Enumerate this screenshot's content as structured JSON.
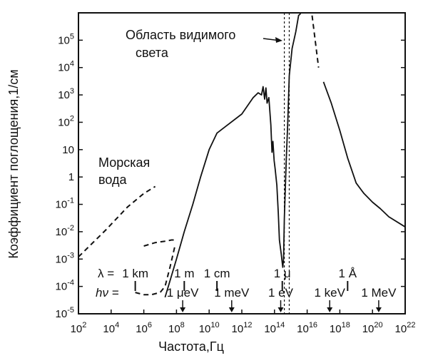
{
  "chart_data": {
    "type": "line",
    "title": "",
    "xlabel": "Частота,Гц",
    "ylabel": "Коэффициент поглощения,1/см",
    "x_scale": "log",
    "y_scale": "log",
    "xlim": [
      100,
      1e+22
    ],
    "ylim": [
      1e-05,
      1000000.0
    ],
    "x_ticks": [
      {
        "value": 100.0,
        "base": "10",
        "exp": "2"
      },
      {
        "value": 10000.0,
        "base": "10",
        "exp": "4"
      },
      {
        "value": 1000000.0,
        "base": "10",
        "exp": "6"
      },
      {
        "value": 100000000.0,
        "base": "10",
        "exp": "8"
      },
      {
        "value": 10000000000.0,
        "base": "10",
        "exp": "10"
      },
      {
        "value": 1000000000000.0,
        "base": "10",
        "exp": "12"
      },
      {
        "value": 100000000000000.0,
        "base": "10",
        "exp": "14"
      },
      {
        "value": 1e+16,
        "base": "10",
        "exp": "16"
      },
      {
        "value": 1e+18,
        "base": "10",
        "exp": "18"
      },
      {
        "value": 1e+20,
        "base": "10",
        "exp": "20"
      },
      {
        "value": 1e+22,
        "base": "10",
        "exp": "22"
      }
    ],
    "y_ticks": [
      {
        "value": 1e-05,
        "base": "10",
        "exp": "-5"
      },
      {
        "value": 0.0001,
        "base": "10",
        "exp": "-4"
      },
      {
        "value": 0.001,
        "base": "10",
        "exp": "-3"
      },
      {
        "value": 0.01,
        "base": "10",
        "exp": "-2"
      },
      {
        "value": 0.1,
        "base": "10",
        "exp": "-1"
      },
      {
        "value": 1,
        "base": "1",
        "exp": ""
      },
      {
        "value": 10,
        "base": "10",
        "exp": ""
      },
      {
        "value": 100.0,
        "base": "10",
        "exp": "2"
      },
      {
        "value": 1000.0,
        "base": "10",
        "exp": "3"
      },
      {
        "value": 10000.0,
        "base": "10",
        "exp": "4"
      },
      {
        "value": 100000.0,
        "base": "10",
        "exp": "5"
      }
    ],
    "series": [
      {
        "style": "solid",
        "points": [
          [
            20000000.0,
            4e-05
          ],
          [
            100000000.0,
            0.001
          ],
          [
            300000000.0,
            0.01
          ],
          [
            1000000000.0,
            0.1
          ],
          [
            3000000000.0,
            1
          ],
          [
            10000000000.0,
            10
          ],
          [
            30000000000.0,
            40
          ],
          [
            100000000000.0,
            70
          ],
          [
            1000000000000.0,
            200
          ],
          [
            5000000000000.0,
            800
          ],
          [
            10000000000000.0,
            1200
          ],
          [
            16000000000000.0,
            1000
          ],
          [
            20000000000000.0,
            2000
          ],
          [
            25000000000000.0,
            700
          ],
          [
            30000000000000.0,
            1800
          ],
          [
            35000000000000.0,
            500
          ],
          [
            45000000000000.0,
            800
          ],
          [
            60000000000000.0,
            80
          ],
          [
            70000000000000.0,
            8
          ],
          [
            80000000000000.0,
            20
          ],
          [
            95000000000000.0,
            4
          ],
          [
            110000000000000.0,
            2
          ],
          [
            140000000000000.0,
            0.5
          ],
          [
            170000000000000.0,
            0.05
          ],
          [
            200000000000000.0,
            0.005
          ],
          [
            260000000000000.0,
            0.0015
          ],
          [
            320000000000000.0,
            0.0005
          ],
          [
            360000000000000.0,
            0.001
          ],
          [
            400000000000000.0,
            0.03
          ],
          [
            460000000000000.0,
            0.4
          ],
          [
            530000000000000.0,
            5
          ],
          [
            650000000000000.0,
            100
          ],
          [
            800000000000000.0,
            5000
          ],
          [
            1200000000000000.0,
            50000
          ],
          [
            2000000000000000.0,
            200000
          ],
          [
            3000000000000000.0,
            800000
          ],
          [
            4000000000000000.0,
            1000000
          ]
        ]
      },
      {
        "style": "solid",
        "points": [
          [
            1e+17,
            3000
          ],
          [
            3e+17,
            500
          ],
          [
            1e+18,
            50
          ],
          [
            3e+18,
            5
          ],
          [
            1e+19,
            0.6
          ],
          [
            3e+19,
            0.25
          ],
          [
            1e+20,
            0.12
          ],
          [
            3e+20,
            0.07
          ],
          [
            1e+21,
            0.035
          ],
          [
            1e+22,
            0.015
          ]
        ]
      },
      {
        "style": "dashed",
        "points": [
          [
            100.0,
            0.0012
          ],
          [
            5000.0,
            0.012
          ],
          [
            100000.0,
            0.08
          ],
          [
            1000000.0,
            0.25
          ],
          [
            5000000.0,
            0.45
          ]
        ]
      },
      {
        "style": "dashed",
        "points": [
          [
            1000000.0,
            0.003
          ],
          [
            5000000.0,
            0.004
          ],
          [
            20000000.0,
            0.0045
          ],
          [
            50000000.0,
            0.005
          ],
          [
            80000000.0,
            0.005
          ]
        ]
      },
      {
        "style": "dashed",
        "points": [
          [
            300000.0,
            6e-05
          ],
          [
            1000000.0,
            5e-05
          ],
          [
            3000000.0,
            5e-05
          ],
          [
            10000000.0,
            6e-05
          ],
          [
            20000000.0,
            0.0001
          ],
          [
            40000000.0,
            0.0005
          ],
          [
            80000000.0,
            0.003
          ]
        ]
      },
      {
        "style": "dashed",
        "points": [
          [
            2e+16,
            800000
          ],
          [
            5e+16,
            10000
          ]
        ]
      }
    ],
    "visible_band": {
      "x_range": [
        400000000000000.0,
        800000000000000.0
      ]
    },
    "annotations": {
      "visible_light": [
        "Область видимого",
        "света"
      ],
      "sea_water": [
        "Морская",
        "вода"
      ],
      "lambda_row": {
        "prefix": "λ = ",
        "items": [
          {
            "x": 300000.0,
            "label": "1 km"
          },
          {
            "x": 300000000.0,
            "label": "1 m"
          },
          {
            "x": 30000000000.0,
            "label": "1 cm"
          },
          {
            "x": 300000000000000.0,
            "label": "1 μ"
          },
          {
            "x": 3e+18,
            "label": "1 Å"
          }
        ]
      },
      "energy_row": {
        "prefix": "hν =",
        "items": [
          {
            "x": 240000000.0,
            "label": "1 μeV"
          },
          {
            "x": 240000000000.0,
            "label": "1 meV"
          },
          {
            "x": 240000000000000.0,
            "label": "1 eV"
          },
          {
            "x": 2.4e+17,
            "label": "1 keV"
          },
          {
            "x": 2.4e+20,
            "label": "1 MeV"
          }
        ]
      }
    }
  }
}
